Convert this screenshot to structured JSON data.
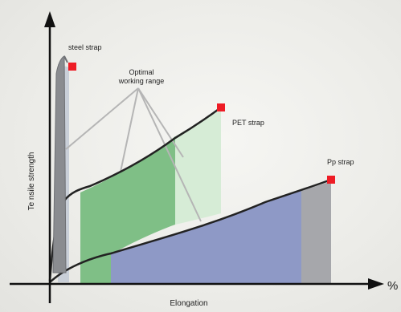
{
  "chart_data": {
    "type": "line",
    "xlabel": "Elongation",
    "ylabel": "Te nsile strength",
    "x_unit": "%",
    "series": [
      {
        "name": "steel strap",
        "color": "#8a8c90",
        "highlight_color": "#c9cfd8"
      },
      {
        "name": "PET strap",
        "color": "#222222",
        "fill_color": "#7fbf86",
        "highlight_color": "#d6ecd6"
      },
      {
        "name": "Pp strap",
        "color": "#222222",
        "fill_color": "#8e99c6",
        "highlight_color": "#a6a7ab"
      }
    ],
    "annotations": [
      {
        "text": "Optimal working range"
      }
    ],
    "end_marker_color": "#ee1c25",
    "axis_color": "#111111",
    "leader_line_color": "#b5b5b5"
  }
}
